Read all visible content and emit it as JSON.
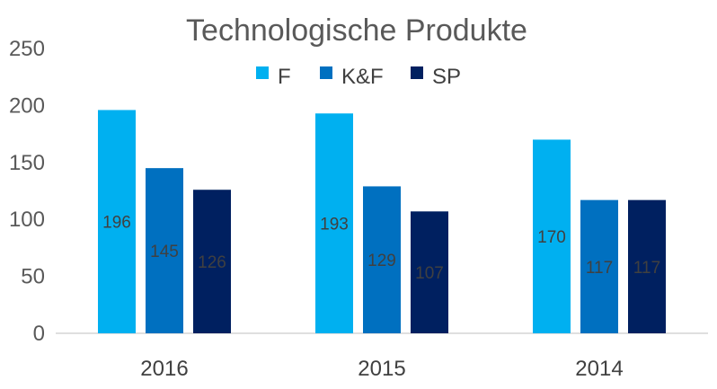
{
  "chart_data": {
    "type": "bar",
    "title": "Technologische Produkte",
    "categories": [
      "2016",
      "2015",
      "2014"
    ],
    "series": [
      {
        "name": "F",
        "color": "#00b0f0",
        "values": [
          196,
          193,
          170
        ]
      },
      {
        "name": "K&F",
        "color": "#0070c0",
        "values": [
          145,
          129,
          117
        ]
      },
      {
        "name": "SP",
        "color": "#002060",
        "values": [
          126,
          107,
          117
        ]
      }
    ],
    "ylim": [
      0,
      250
    ],
    "yticks": [
      0,
      50,
      100,
      150,
      200,
      250
    ],
    "grid": false,
    "legend_position": "top-center",
    "data_labels": true
  }
}
